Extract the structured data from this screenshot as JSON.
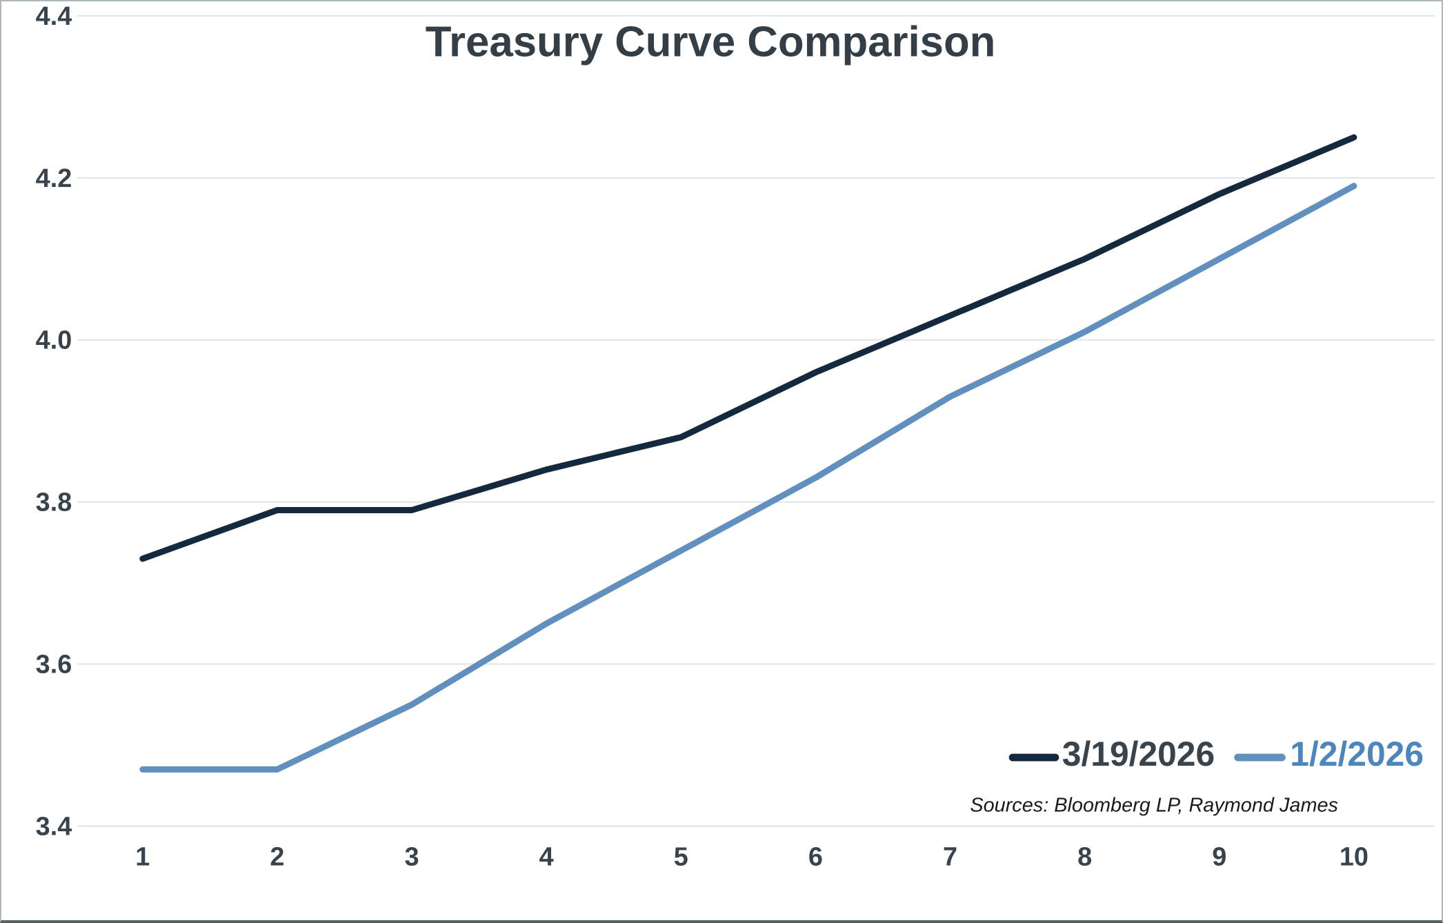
{
  "title": "Treasury Curve Comparison",
  "sources_note": "Sources: Bloomberg LP, Raymond James",
  "legend": {
    "items": [
      {
        "label": "3/19/2026",
        "label_color": "#39434c",
        "swatch_color": "#14293e"
      },
      {
        "label": "1/2/2026",
        "label_color": "#4d85be",
        "swatch_color": "#6290be"
      }
    ]
  },
  "colors": {
    "series_dark_navy": "#14293e",
    "series_light_blue": "#6290be",
    "gridline": "#dfe5e9",
    "tick_text": "#39434c",
    "title_text": "#333e47"
  },
  "chart_data": {
    "type": "line",
    "x": [
      1,
      2,
      3,
      4,
      5,
      6,
      7,
      8,
      9,
      10
    ],
    "series": [
      {
        "name": "3/19/2026",
        "color": "#14293e",
        "values": [
          3.73,
          3.79,
          3.79,
          3.84,
          3.88,
          3.96,
          4.03,
          4.1,
          4.18,
          4.25
        ]
      },
      {
        "name": "1/2/2026",
        "color": "#6290be",
        "values": [
          3.47,
          3.47,
          3.55,
          3.65,
          3.74,
          3.83,
          3.93,
          4.01,
          4.1,
          4.19
        ]
      }
    ],
    "title": "Treasury Curve Comparison",
    "xlabel": "",
    "ylabel": "",
    "ylim": [
      3.4,
      4.4
    ],
    "yticks": [
      3.4,
      3.6,
      3.8,
      4.0,
      4.2,
      4.4
    ],
    "xticks": [
      1,
      2,
      3,
      4,
      5,
      6,
      7,
      8,
      9,
      10
    ],
    "grid": true,
    "legend_position": "lower right"
  }
}
